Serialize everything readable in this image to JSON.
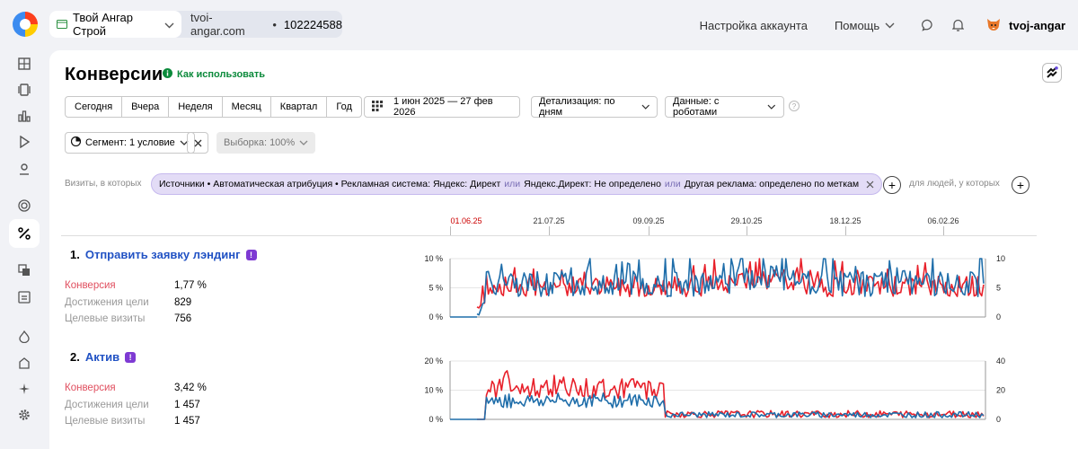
{
  "header": {
    "counter_name": "Твой Ангар Строй",
    "site": "tvoi-angar.com",
    "counter_id": "102224588",
    "account_settings": "Настройка аккаунта",
    "help": "Помощь",
    "username": "tvoj-angar"
  },
  "page": {
    "title": "Конверсии",
    "howto": "Как использовать"
  },
  "periods": [
    "Сегодня",
    "Вчера",
    "Неделя",
    "Месяц",
    "Квартал",
    "Год"
  ],
  "date_range": "1 июн 2025 — 27 фев 2026",
  "detail": "Детализация: по дням",
  "data_mode": "Данные: с роботами",
  "segment": "Сегмент: 1 условие",
  "sample": "Выборка: 100%",
  "filter": {
    "visits_label": "Визиты, в которых",
    "p1": "Источники • Автоматическая атрибуция • Рекламная система: Яндекс: Директ",
    "or1": "или",
    "p2": "Яндекс.Директ: Не определено",
    "or2": "или",
    "p3": "Другая реклама: определено по меткам",
    "people_label": "для людей, у которых"
  },
  "timeline": [
    "01.06.25",
    "21.07.25",
    "09.09.25",
    "29.10.25",
    "18.12.25",
    "06.02.26"
  ],
  "goals": [
    {
      "number": "1.",
      "name": "Отправить заявку лэндинг",
      "conv_label": "Конверсия",
      "conv_value": "1,77 %",
      "ach_label": "Достижения цели",
      "ach_value": "829",
      "vis_label": "Целевые визиты",
      "vis_value": "756"
    },
    {
      "number": "2.",
      "name": "Актив",
      "conv_label": "Конверсия",
      "conv_value": "3,42 %",
      "ach_label": "Достижения цели",
      "ach_value": "1 457",
      "vis_label": "Целевые визиты",
      "vis_value": "1 457"
    }
  ],
  "chart_data": [
    {
      "type": "line",
      "x": [
        "01.06.25",
        "27.02.26"
      ],
      "yticks_left": [
        "10 %",
        "5 %",
        "0 %"
      ],
      "yticks_right": [
        "10",
        "5",
        "0"
      ],
      "ylim_left": [
        0,
        10
      ],
      "ylim_right": [
        0,
        10
      ],
      "colors": {
        "conversion": "#e8202a",
        "visits": "#1f6eaa"
      }
    },
    {
      "type": "line",
      "x": [
        "01.06.25",
        "27.02.26"
      ],
      "yticks_left": [
        "20 %",
        "10 %",
        "0 %"
      ],
      "yticks_right": [
        "40",
        "20",
        "0"
      ],
      "ylim_left": [
        0,
        20
      ],
      "ylim_right": [
        0,
        40
      ],
      "colors": {
        "conversion": "#e8202a",
        "visits": "#1f6eaa"
      }
    }
  ]
}
